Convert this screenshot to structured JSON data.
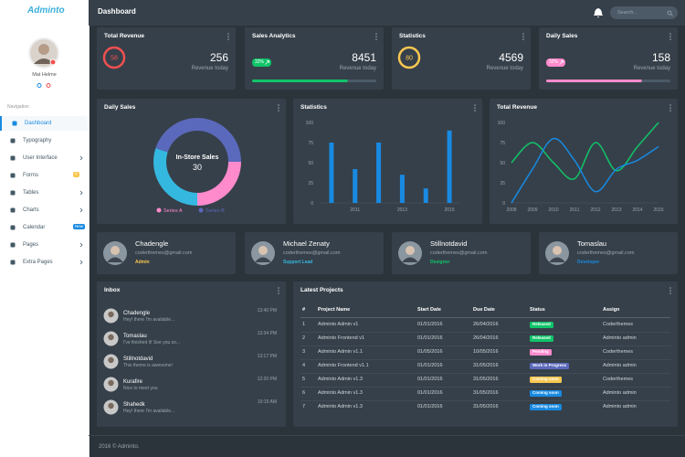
{
  "brand": "Adminto",
  "user": {
    "name": "Mat Helme"
  },
  "nav": {
    "title": "Navigation",
    "items": [
      {
        "label": "Dashboard",
        "active": true
      },
      {
        "label": "Typography"
      },
      {
        "label": "User Interface",
        "submenu": true
      },
      {
        "label": "Forms",
        "badge": "7",
        "badge_color": "#f9c851"
      },
      {
        "label": "Tables",
        "submenu": true
      },
      {
        "label": "Charts",
        "submenu": true
      },
      {
        "label": "Calendar",
        "badge": "New",
        "badge_color": "#188ae2"
      },
      {
        "label": "Pages",
        "submenu": true
      },
      {
        "label": "Extra Pages",
        "submenu": true
      }
    ]
  },
  "header": {
    "title": "Dashboard",
    "search_placeholder": "Search..."
  },
  "stats": [
    {
      "title": "Total Revenue",
      "ring": 58,
      "ring_color": "#f05050",
      "value": 256,
      "label": "Revenue today"
    },
    {
      "title": "Sales Analytics",
      "badge": "32%",
      "badge_color": "#10c469",
      "value": 8451,
      "label": "Revenue today",
      "progress": 77,
      "progress_color": "#10c469"
    },
    {
      "title": "Statistics",
      "ring": 80,
      "ring_color": "#f9c851",
      "value": 4569,
      "label": "Revenue today"
    },
    {
      "title": "Daily Sales",
      "badge": "32%",
      "badge_color": "#ff8acc",
      "value": 158,
      "label": "Revenue today",
      "progress": 77,
      "progress_color": "#ff8acc"
    }
  ],
  "chart_data": [
    {
      "type": "pie",
      "title": "Daily Sales",
      "donut": true,
      "values": [
        25,
        30,
        45
      ],
      "colors": [
        "#ff8acc",
        "#35b8e0",
        "#5b69bc"
      ],
      "center_label": "In-Store Sales",
      "highlight": 1,
      "legend": [
        {
          "name": "Series A",
          "color": "#ff8acc"
        },
        {
          "name": "Series B",
          "color": "#5b69bc"
        }
      ]
    },
    {
      "type": "bar",
      "title": "Statistics",
      "categories": [
        null,
        "2011",
        null,
        "2013",
        null,
        "2015"
      ],
      "values": [
        75,
        42,
        75,
        35,
        18,
        90
      ],
      "color": "#188ae2",
      "ylim": [
        0,
        100
      ],
      "yticks": [
        0,
        25,
        50,
        75,
        100
      ]
    },
    {
      "type": "line",
      "title": "Total Revenue",
      "categories": [
        "2008",
        "2009",
        "2010",
        "2011",
        "2012",
        "2013",
        "2014",
        "2015"
      ],
      "series": [
        {
          "color": "#10c469",
          "values": [
            50,
            75,
            50,
            30,
            75,
            40,
            70,
            100
          ]
        },
        {
          "color": "#188ae2",
          "values": [
            0,
            42,
            80,
            53,
            14,
            42,
            53,
            70
          ]
        }
      ],
      "ylim": [
        0,
        100
      ],
      "yticks": [
        0,
        25,
        50,
        75,
        100
      ],
      "smooth": true
    }
  ],
  "contacts": [
    {
      "name": "Chadengle",
      "email": "coderthemes@gmail.com",
      "role": "Admin",
      "role_color": "#f9c851"
    },
    {
      "name": "Michael Zenaty",
      "email": "coderthemes@gmail.com",
      "role": "Support Lead",
      "role_color": "#35b8e0"
    },
    {
      "name": "Stillnotdavid",
      "email": "coderthemes@gmail.com",
      "role": "Designer",
      "role_color": "#10c469"
    },
    {
      "name": "Tomaslau",
      "email": "coderthemes@gmail.com",
      "role": "Developer",
      "role_color": "#188ae2"
    }
  ],
  "inbox": {
    "title": "Inbox",
    "items": [
      {
        "name": "Chadengle",
        "message": "Hey! there I'm available...",
        "time": "13:40 PM"
      },
      {
        "name": "Tomaslau",
        "message": "I've finished it! See you so...",
        "time": "13:34 PM"
      },
      {
        "name": "Stillnotdavid",
        "message": "This theme is awesome!",
        "time": "13:17 PM"
      },
      {
        "name": "Kurafire",
        "message": "Nice to meet you",
        "time": "12:20 PM"
      },
      {
        "name": "Shahedk",
        "message": "Hey! there I'm available...",
        "time": "10:15 AM"
      }
    ]
  },
  "projects": {
    "title": "Latest Projects",
    "headers": [
      "#",
      "Project Name",
      "Start Date",
      "Due Date",
      "Status",
      "Assign"
    ],
    "rows": [
      [
        1,
        "Adminto Admin v1",
        "01/01/2016",
        "26/04/2016",
        "Released",
        "Coderthemes"
      ],
      [
        2,
        "Adminto Frontend v1",
        "01/01/2016",
        "26/04/2016",
        "Released",
        "Adminto admin"
      ],
      [
        3,
        "Adminto Admin v1.1",
        "01/05/2016",
        "10/05/2016",
        "Pending",
        "Coderthemes"
      ],
      [
        4,
        "Adminto Frontend v1.1",
        "01/01/2016",
        "31/05/2016",
        "Work in Progress",
        "Adminto admin"
      ],
      [
        5,
        "Adminto Admin v1.3",
        "01/01/2016",
        "31/05/2016",
        "Coming soon",
        "Coderthemes"
      ],
      [
        6,
        "Adminto Admin v1.3",
        "01/01/2016",
        "31/05/2016",
        "Coming soon",
        "Adminto admin"
      ],
      [
        7,
        "Adminto Admin v1.3",
        "01/01/2016",
        "31/05/2016",
        "Coming soon",
        "Adminto admin"
      ]
    ],
    "status_colors": [
      "#10c469",
      "#10c469",
      "#ff8acc",
      "#5b69bc",
      "#f9c851",
      "#188ae2",
      "#188ae2"
    ]
  },
  "footer": "2016 © Adminto."
}
